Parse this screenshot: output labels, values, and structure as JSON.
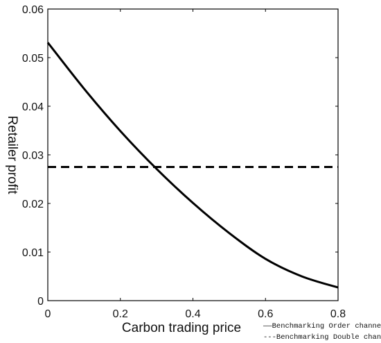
{
  "chart_data": {
    "type": "line",
    "xlabel": "Carbon trading price",
    "ylabel": "Retailer profit",
    "xlim": [
      0,
      0.8
    ],
    "ylim": [
      0,
      0.06
    ],
    "x_ticks": [
      "0",
      "0.2",
      "0.4",
      "0.6",
      "0.8"
    ],
    "y_ticks": [
      "0",
      "0.01",
      "0.02",
      "0.03",
      "0.04",
      "0.05",
      "0.06"
    ],
    "grid": false,
    "legend_position": "bottom-right",
    "series": [
      {
        "name": "Benchmarking Order channel",
        "style": "solid",
        "color": "#000000",
        "x": [
          0,
          0.1,
          0.2,
          0.3,
          0.4,
          0.5,
          0.6,
          0.7,
          0.8
        ],
        "y": [
          0.0531,
          0.0436,
          0.0349,
          0.0271,
          0.0201,
          0.0139,
          0.0086,
          0.005,
          0.0027
        ]
      },
      {
        "name": "Benchmarking Double channel",
        "style": "dashed",
        "color": "#000000",
        "x": [
          0,
          0.8
        ],
        "y": [
          0.0275,
          0.0275
        ]
      }
    ],
    "legend_labels": [
      "——Benchmarking Order channel",
      "---Benchmarking Double channel"
    ]
  }
}
